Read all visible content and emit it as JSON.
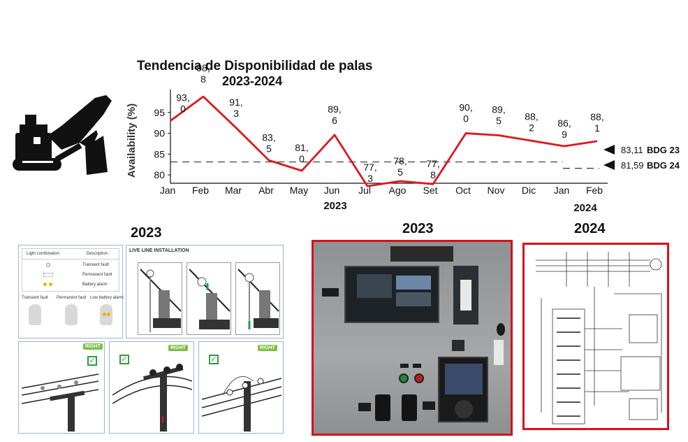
{
  "chart_data": {
    "type": "line",
    "title": "Tendencia de Disponibilidad de palas",
    "subtitle": "2023-2024",
    "ylabel": "Availability (%)",
    "ylim": [
      78,
      100
    ],
    "yticks": [
      80,
      85,
      90,
      95
    ],
    "categories": [
      "Jan",
      "Feb",
      "Mar",
      "Abr",
      "May",
      "Jun",
      "Jul",
      "Ago",
      "Set",
      "Oct",
      "Nov",
      "Dic",
      "Jan",
      "Feb"
    ],
    "year_labels": [
      "2023",
      "2024"
    ],
    "series": [
      {
        "values": [
          93.0,
          98.8,
          91.3,
          83.5,
          81.0,
          89.6,
          77.3,
          78.5,
          77.8,
          90.0,
          89.5,
          88.2,
          86.9,
          88.1
        ],
        "labels": [
          [
            "93,",
            "0"
          ],
          [
            "98,",
            "8"
          ],
          [
            "91,",
            "3"
          ],
          [
            "83,",
            "5"
          ],
          [
            "81,",
            "0"
          ],
          [
            "89,",
            "6"
          ],
          [
            "77,",
            "3"
          ],
          [
            "78,",
            "5"
          ],
          [
            "77,",
            "8"
          ],
          [
            "90,",
            "0"
          ],
          [
            "89,",
            "5"
          ],
          [
            "88,",
            "2"
          ],
          [
            "86,",
            "9"
          ],
          [
            "88,",
            "1"
          ]
        ],
        "color": "#e0161e"
      }
    ],
    "budgets": [
      {
        "value": 83.11,
        "value_label": "83,11",
        "name": "BDG 23"
      },
      {
        "value": 81.59,
        "value_label": "81,59",
        "name": "BDG 24"
      }
    ],
    "grid": false
  },
  "sections": {
    "left_year": "2023",
    "middle_year": "2023",
    "right_year": "2024"
  },
  "indicator_panel": {
    "table_headers": [
      "Light combination",
      "Description"
    ],
    "table_rows": [
      "Transient fault",
      "Permanent fault",
      "Battery alarm"
    ],
    "fault_types": [
      "Transient fault",
      "Permanent fault",
      "Low battery alarm"
    ],
    "install_title": "LIVE LINE INSTALLATION",
    "right_tags": [
      "RIGHT",
      "RIGHT",
      "RIGHT"
    ]
  },
  "colors": {
    "line": "#e0161e",
    "frame_red": "#d6111b",
    "panel_border": "#9bb4d4",
    "cabinet": "#9a9c9e"
  }
}
